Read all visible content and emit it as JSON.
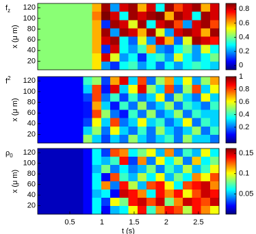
{
  "chart_data": [
    {
      "type": "heatmap",
      "label": "f",
      "label_sub": "z",
      "ylabel": "x (μ m)",
      "colormap": "jet",
      "xlim": [
        0,
        2.82
      ],
      "ylim": [
        4,
        128
      ],
      "yticks": [
        20,
        40,
        60,
        80,
        100,
        120
      ],
      "clim": [
        -0.06,
        0.88
      ],
      "cticks": [
        0,
        0.2,
        0.4,
        0.6,
        0.8
      ],
      "z": [
        [
          0.42,
          0.42,
          0.42,
          0.42,
          0.42,
          0.42,
          0.6,
          0.85,
          0.2,
          0.8,
          0.85,
          0.6,
          0.8,
          0.3,
          0.85,
          0.7,
          0.8,
          0.85,
          0.6,
          0.8
        ],
        [
          0.42,
          0.42,
          0.42,
          0.42,
          0.42,
          0.42,
          0.65,
          0.9,
          0.8,
          0.3,
          0.85,
          0.8,
          0.85,
          0.9,
          0.6,
          0.85,
          0.8,
          0.3,
          0.85,
          0.8
        ],
        [
          0.42,
          0.42,
          0.42,
          0.42,
          0.42,
          0.42,
          0.6,
          0.1,
          0.85,
          0.8,
          0.5,
          0.85,
          0.3,
          0.8,
          0.85,
          0.7,
          0.2,
          0.8,
          0.85,
          0.7
        ],
        [
          0.42,
          0.42,
          0.42,
          0.42,
          0.42,
          0.42,
          0.6,
          0.85,
          0.2,
          0.85,
          0.8,
          0.6,
          0.85,
          0.5,
          0.2,
          0.8,
          0.85,
          0.8,
          0.6,
          0.85
        ],
        [
          0.42,
          0.42,
          0.42,
          0.42,
          0.42,
          0.42,
          0.6,
          0.8,
          0.85,
          0.3,
          0.15,
          0.5,
          0.2,
          0.8,
          0.6,
          0.15,
          0.5,
          0.85,
          0.8,
          0.75
        ],
        [
          0.42,
          0.42,
          0.42,
          0.42,
          0.42,
          0.42,
          0.6,
          0.1,
          0.8,
          0.3,
          0.2,
          0.35,
          0.6,
          0.2,
          0.15,
          0.3,
          0.4,
          0.2,
          0.5,
          0.3
        ],
        [
          0.42,
          0.42,
          0.42,
          0.42,
          0.42,
          0.42,
          0.55,
          0.8,
          0.5,
          0.2,
          0.3,
          0.1,
          0.3,
          0.35,
          0.2,
          0.5,
          0.3,
          0.2,
          0.3,
          0.4
        ],
        [
          0.42,
          0.42,
          0.42,
          0.42,
          0.42,
          0.42,
          0.55,
          0.2,
          0.1,
          0.3,
          0.35,
          0.2,
          0.3,
          0.15,
          0.3,
          0.2,
          0.3,
          0.35,
          0.3,
          0.25
        ]
      ]
    },
    {
      "type": "heatmap",
      "label": "f",
      "label_sup": "2",
      "ylabel": "x (μ m)",
      "colormap": "jet",
      "xlim": [
        0,
        2.82
      ],
      "ylim": [
        4,
        128
      ],
      "yticks": [
        20,
        40,
        60,
        80,
        100,
        120
      ],
      "clim": [
        -0.05,
        1
      ],
      "cticks": [
        0.2,
        0.4,
        0.6,
        0.8,
        1
      ],
      "z": [
        [
          0.08,
          0.08,
          0.08,
          0.08,
          0.08,
          0.4,
          0.5,
          0.15,
          0.7,
          0.9,
          0.3,
          0.8,
          0.2,
          0.5,
          0.7,
          0.3,
          0.6,
          0.25,
          0.5,
          0.7
        ],
        [
          0.08,
          0.08,
          0.08,
          0.08,
          0.08,
          0.3,
          0.8,
          0.1,
          0.9,
          0.3,
          0.6,
          0.9,
          0.5,
          0.3,
          0.8,
          0.2,
          0.5,
          0.8,
          0.3,
          0.6
        ],
        [
          0.08,
          0.08,
          0.08,
          0.08,
          0.08,
          0.15,
          0.8,
          0.2,
          0.4,
          0.15,
          0.4,
          0.2,
          0.3,
          0.6,
          0.2,
          0.5,
          0.3,
          0.2,
          0.6,
          0.3
        ],
        [
          0.08,
          0.08,
          0.08,
          0.08,
          0.08,
          0.1,
          0.7,
          0.3,
          0.1,
          0.4,
          0.2,
          0.5,
          0.2,
          0.3,
          0.5,
          0.2,
          0.4,
          0.3,
          0.2,
          0.4
        ],
        [
          0.08,
          0.08,
          0.08,
          0.08,
          0.08,
          0.1,
          0.8,
          0.5,
          0.2,
          0.1,
          0.4,
          0.2,
          0.5,
          0.2,
          0.3,
          0.5,
          0.2,
          0.4,
          0.3,
          0.3
        ],
        [
          0.08,
          0.08,
          0.08,
          0.08,
          0.08,
          0.15,
          0.6,
          0.3,
          0.8,
          0.2,
          0.3,
          0.6,
          0.3,
          0.4,
          0.2,
          0.3,
          0.6,
          0.2,
          0.4,
          0.3
        ],
        [
          0.08,
          0.08,
          0.08,
          0.08,
          0.08,
          0.3,
          0.5,
          0.2,
          0.6,
          0.3,
          0.2,
          0.4,
          0.2,
          0.5,
          0.3,
          0.2,
          0.3,
          0.5,
          0.2,
          0.4
        ],
        [
          0.08,
          0.08,
          0.08,
          0.08,
          0.08,
          0.5,
          0.3,
          0.15,
          0.3,
          0.2,
          0.5,
          0.3,
          0.2,
          0.3,
          0.4,
          0.2,
          0.5,
          0.3,
          0.3,
          0.2
        ]
      ]
    },
    {
      "type": "heatmap",
      "label": "ρ",
      "label_sub": "0",
      "ylabel": "x (μ m)",
      "xlabel": "t (s)",
      "colormap": "jet",
      "xlim": [
        0,
        2.82
      ],
      "ylim": [
        4,
        128
      ],
      "yticks": [
        20,
        40,
        60,
        80,
        100,
        120
      ],
      "xticks": [
        0.5,
        1,
        1.5,
        2,
        2.5
      ],
      "clim": [
        0,
        0.162
      ],
      "cticks": [
        0.05,
        0.1,
        0.15
      ],
      "z": [
        [
          0.01,
          0.01,
          0.01,
          0.01,
          0.01,
          0.02,
          0.06,
          0.03,
          0.13,
          0.12,
          0.06,
          0.08,
          0.1,
          0.05,
          0.12,
          0.04,
          0.07,
          0.05,
          0.1,
          0.06
        ],
        [
          0.01,
          0.01,
          0.01,
          0.01,
          0.01,
          0.02,
          0.06,
          0.05,
          0.07,
          0.14,
          0.03,
          0.12,
          0.04,
          0.1,
          0.06,
          0.09,
          0.04,
          0.11,
          0.06,
          0.08
        ],
        [
          0.01,
          0.01,
          0.01,
          0.01,
          0.01,
          0.02,
          0.05,
          0.08,
          0.04,
          0.06,
          0.04,
          0.05,
          0.08,
          0.04,
          0.07,
          0.05,
          0.09,
          0.05,
          0.07,
          0.1
        ],
        [
          0.01,
          0.01,
          0.01,
          0.01,
          0.01,
          0.02,
          0.06,
          0.02,
          0.13,
          0.07,
          0.05,
          0.09,
          0.06,
          0.1,
          0.05,
          0.08,
          0.06,
          0.12,
          0.1,
          0.13
        ],
        [
          0.01,
          0.01,
          0.01,
          0.01,
          0.01,
          0.02,
          0.06,
          0.12,
          0.04,
          0.14,
          0.09,
          0.05,
          0.13,
          0.14,
          0.1,
          0.06,
          0.13,
          0.14,
          0.15,
          0.12
        ],
        [
          0.01,
          0.01,
          0.01,
          0.01,
          0.01,
          0.02,
          0.05,
          0.06,
          0.02,
          0.15,
          0.14,
          0.12,
          0.06,
          0.14,
          0.12,
          0.14,
          0.1,
          0.13,
          0.15,
          0.14
        ],
        [
          0.01,
          0.01,
          0.01,
          0.01,
          0.01,
          0.02,
          0.06,
          0.03,
          0.1,
          0.08,
          0.14,
          0.15,
          0.13,
          0.15,
          0.08,
          0.12,
          0.15,
          0.14,
          0.13,
          0.15
        ],
        [
          0.01,
          0.01,
          0.01,
          0.01,
          0.01,
          0.02,
          0.06,
          0.02,
          0.05,
          0.06,
          0.1,
          0.14,
          0.07,
          0.12,
          0.14,
          0.13,
          0.09,
          0.14,
          0.12,
          0.1
        ]
      ]
    }
  ]
}
